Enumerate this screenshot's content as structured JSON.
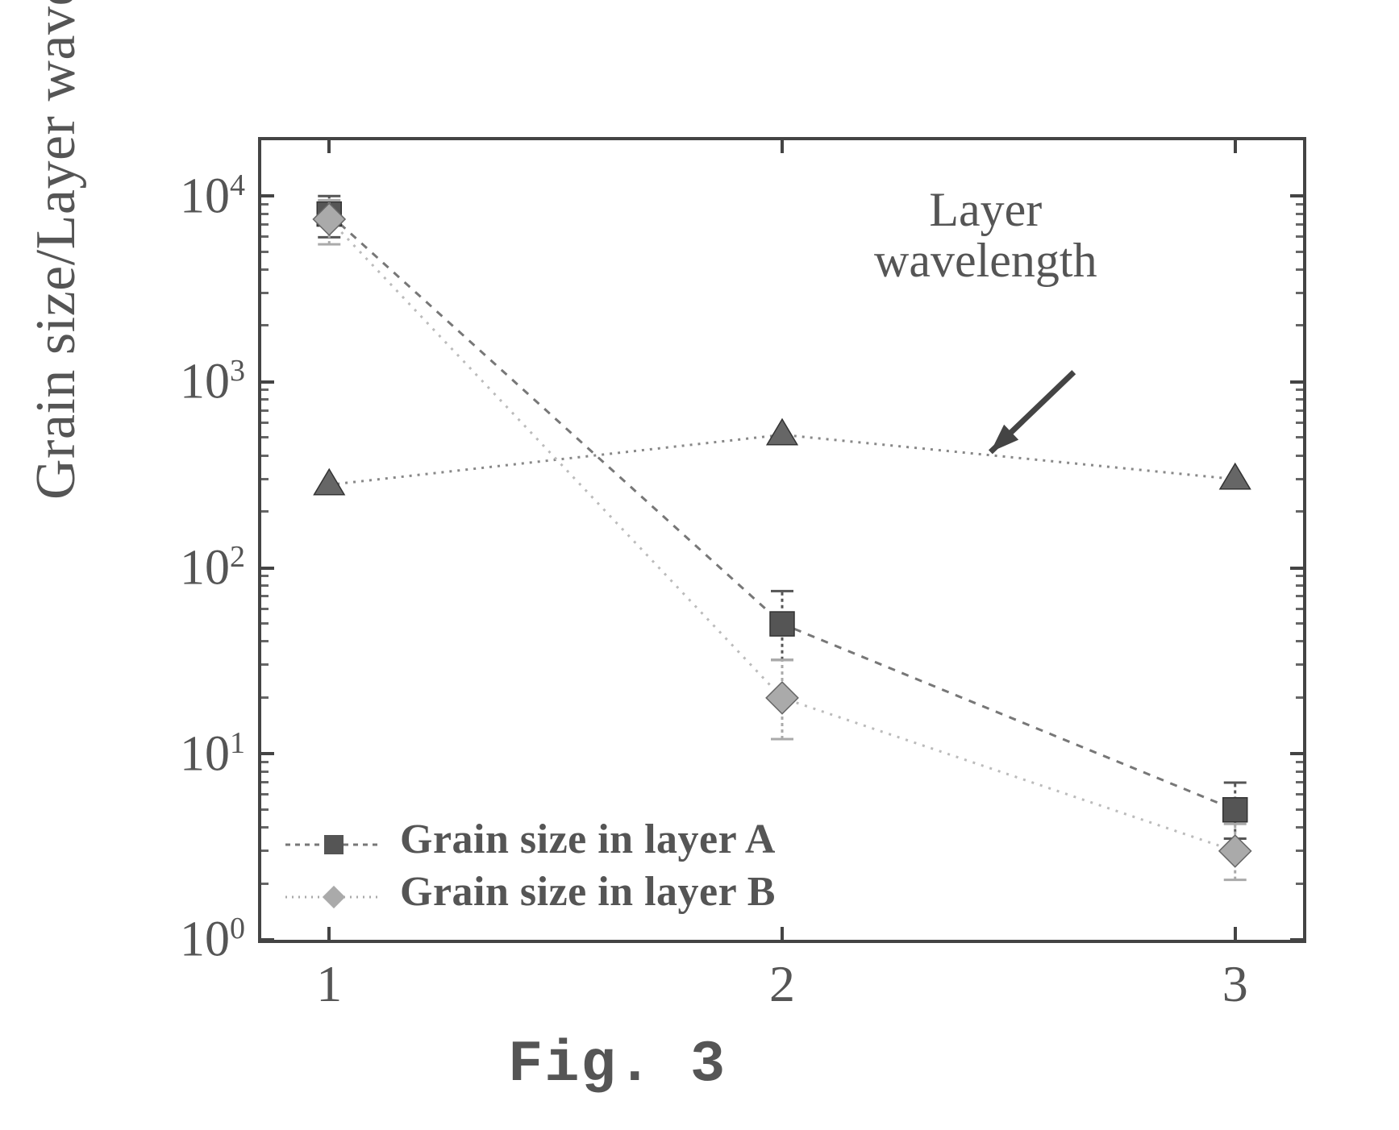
{
  "chart": {
    "type": "scatter-line-log",
    "ylabel": "Grain size/Layer wavelength (nm)",
    "caption": "Fig. 3",
    "background_color": "#ffffff",
    "border_color": "#444444",
    "text_color": "#555555",
    "font_family": "Times New Roman",
    "title_fontsize": 70,
    "tick_fontsize": 62,
    "annotation_fontsize": 60,
    "legend_fontsize": 52,
    "caption_fontsize": 72,
    "xlim": [
      0.85,
      3.15
    ],
    "ylim_log10": [
      0,
      4.3
    ],
    "x_ticks": [
      1,
      2,
      3
    ],
    "y_ticks_exp": [
      0,
      1,
      2,
      3,
      4
    ],
    "y_tick_labels": [
      "10^0",
      "10^1",
      "10^2",
      "10^3",
      "10^4"
    ],
    "annotation": {
      "text_lines": [
        "Layer",
        "wavelength"
      ],
      "arrow_from_rel": [
        0.78,
        0.29
      ],
      "arrow_to_rel": [
        0.7,
        0.39
      ]
    },
    "legend": {
      "items": [
        {
          "id": "A",
          "label": "Grain size in layer A",
          "marker": "square",
          "color": "#555555",
          "dash": "6 6"
        },
        {
          "id": "B",
          "label": "Grain size in layer B",
          "marker": "diamond",
          "color": "#aaaaaa",
          "dash": "2 6"
        }
      ]
    },
    "series": {
      "grain_A": {
        "marker": "square",
        "marker_size": 30,
        "color": "#555555",
        "line_dash": "9 9",
        "line_width": 3,
        "x": [
          1,
          2,
          3
        ],
        "y": [
          8000,
          50,
          5
        ],
        "yerr_low": [
          6000,
          32,
          3.5
        ],
        "yerr_high": [
          10000,
          75,
          7
        ]
      },
      "grain_B": {
        "marker": "diamond",
        "marker_size": 28,
        "color": "#aaaaaa",
        "line_dash": "3 8",
        "line_width": 3,
        "x": [
          1,
          2,
          3
        ],
        "y": [
          7500,
          20,
          3
        ],
        "yerr_low": [
          5500,
          12,
          2.1
        ],
        "yerr_high": [
          9500,
          32,
          4.2
        ]
      },
      "layer_wavelength": {
        "marker": "triangle",
        "marker_size": 30,
        "color": "#666666",
        "line_dash": "3 7",
        "line_width": 3,
        "x": [
          1,
          2,
          3
        ],
        "y": [
          280,
          520,
          300
        ]
      }
    }
  }
}
